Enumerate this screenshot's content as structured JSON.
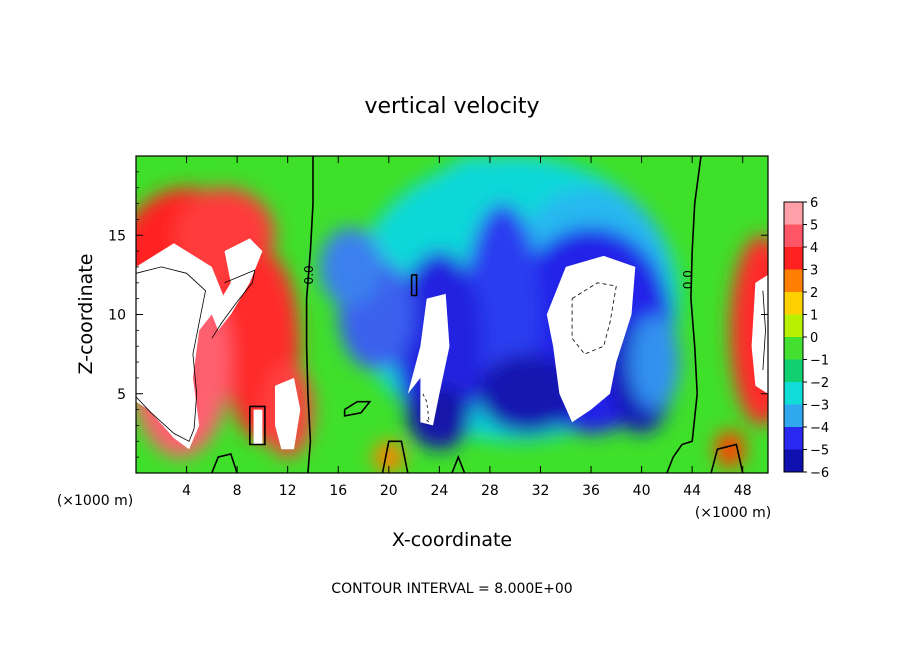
{
  "chart_data": {
    "type": "heatmap",
    "title": "vertical velocity",
    "xlabel": "X-coordinate",
    "ylabel": "Z-coordinate",
    "x_unit_left": "(×1000 m)",
    "x_unit_right": "(×1000 m)",
    "footer": "CONTOUR INTERVAL = 8.000E+00",
    "xlim": [
      0,
      50
    ],
    "ylim": [
      0,
      20
    ],
    "x_ticks": [
      "4",
      "8",
      "12",
      "16",
      "20",
      "24",
      "28",
      "32",
      "36",
      "40",
      "44",
      "48"
    ],
    "y_ticks": [
      "5",
      "10",
      "15"
    ],
    "colorbar": {
      "labels": [
        "6",
        "5",
        "4",
        "3",
        "2",
        "1",
        "0",
        "−1",
        "−2",
        "−3",
        "−4",
        "−5",
        "−6"
      ],
      "colors": [
        "#ff9fa8",
        "#ff5565",
        "#ff2020",
        "#ff8000",
        "#ffd000",
        "#b8f000",
        "#44e030",
        "#10d070",
        "#10dcd8",
        "#30a8f0",
        "#2828f0",
        "#1010b0",
        "#8020c0"
      ]
    },
    "contour_labels": [
      {
        "x": 14,
        "y": 12.5,
        "text": "0.0"
      },
      {
        "x": 44,
        "y": 12.2,
        "text": "0.0"
      }
    ],
    "features": [
      {
        "kind": "updraft",
        "x": 3.5,
        "z": 8.5,
        "peak": 8
      },
      {
        "kind": "updraft",
        "x": 9,
        "z": 10,
        "peak": 6
      },
      {
        "kind": "updraft",
        "x": 12,
        "z": 4,
        "peak": 6
      },
      {
        "kind": "updraft",
        "x": 49.5,
        "z": 8.5,
        "peak": 6
      },
      {
        "kind": "downdraft",
        "x": 23.5,
        "z": 7,
        "peak": -8
      },
      {
        "kind": "downdraft",
        "x": 36,
        "z": 8.5,
        "peak": -14
      },
      {
        "kind": "downdraft",
        "x": 30,
        "z": 10,
        "peak": -4
      }
    ]
  }
}
